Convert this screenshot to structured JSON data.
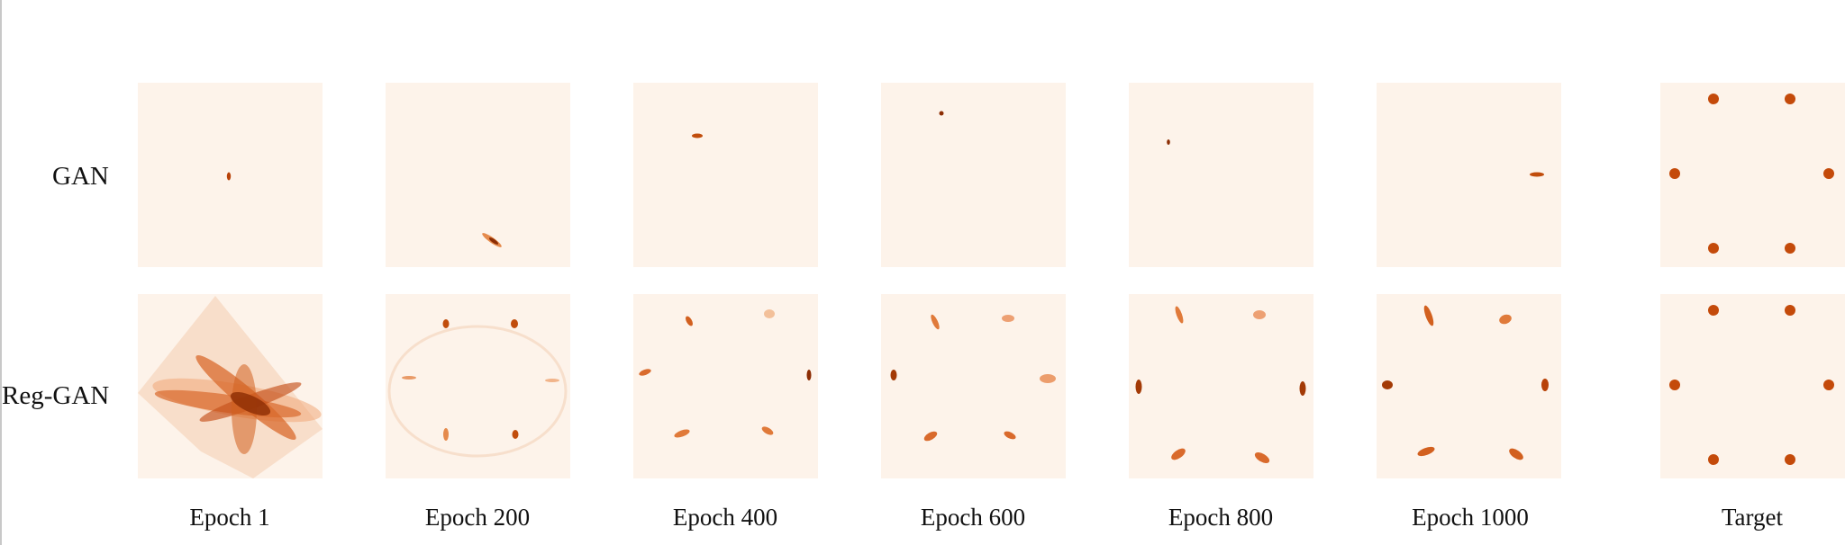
{
  "figure": {
    "rows": [
      {
        "label": "GAN"
      },
      {
        "label": "Reg-GAN"
      }
    ],
    "columns": [
      {
        "label": "Epoch 1"
      },
      {
        "label": "Epoch 200"
      },
      {
        "label": "Epoch 400"
      },
      {
        "label": "Epoch 600"
      },
      {
        "label": "Epoch 800"
      },
      {
        "label": "Epoch 1000"
      },
      {
        "label": "Target"
      }
    ],
    "colormap": {
      "background": "#fdf3ea",
      "low": "#f4a574",
      "mid": "#d95a16",
      "high": "#8c2d04"
    }
  }
}
